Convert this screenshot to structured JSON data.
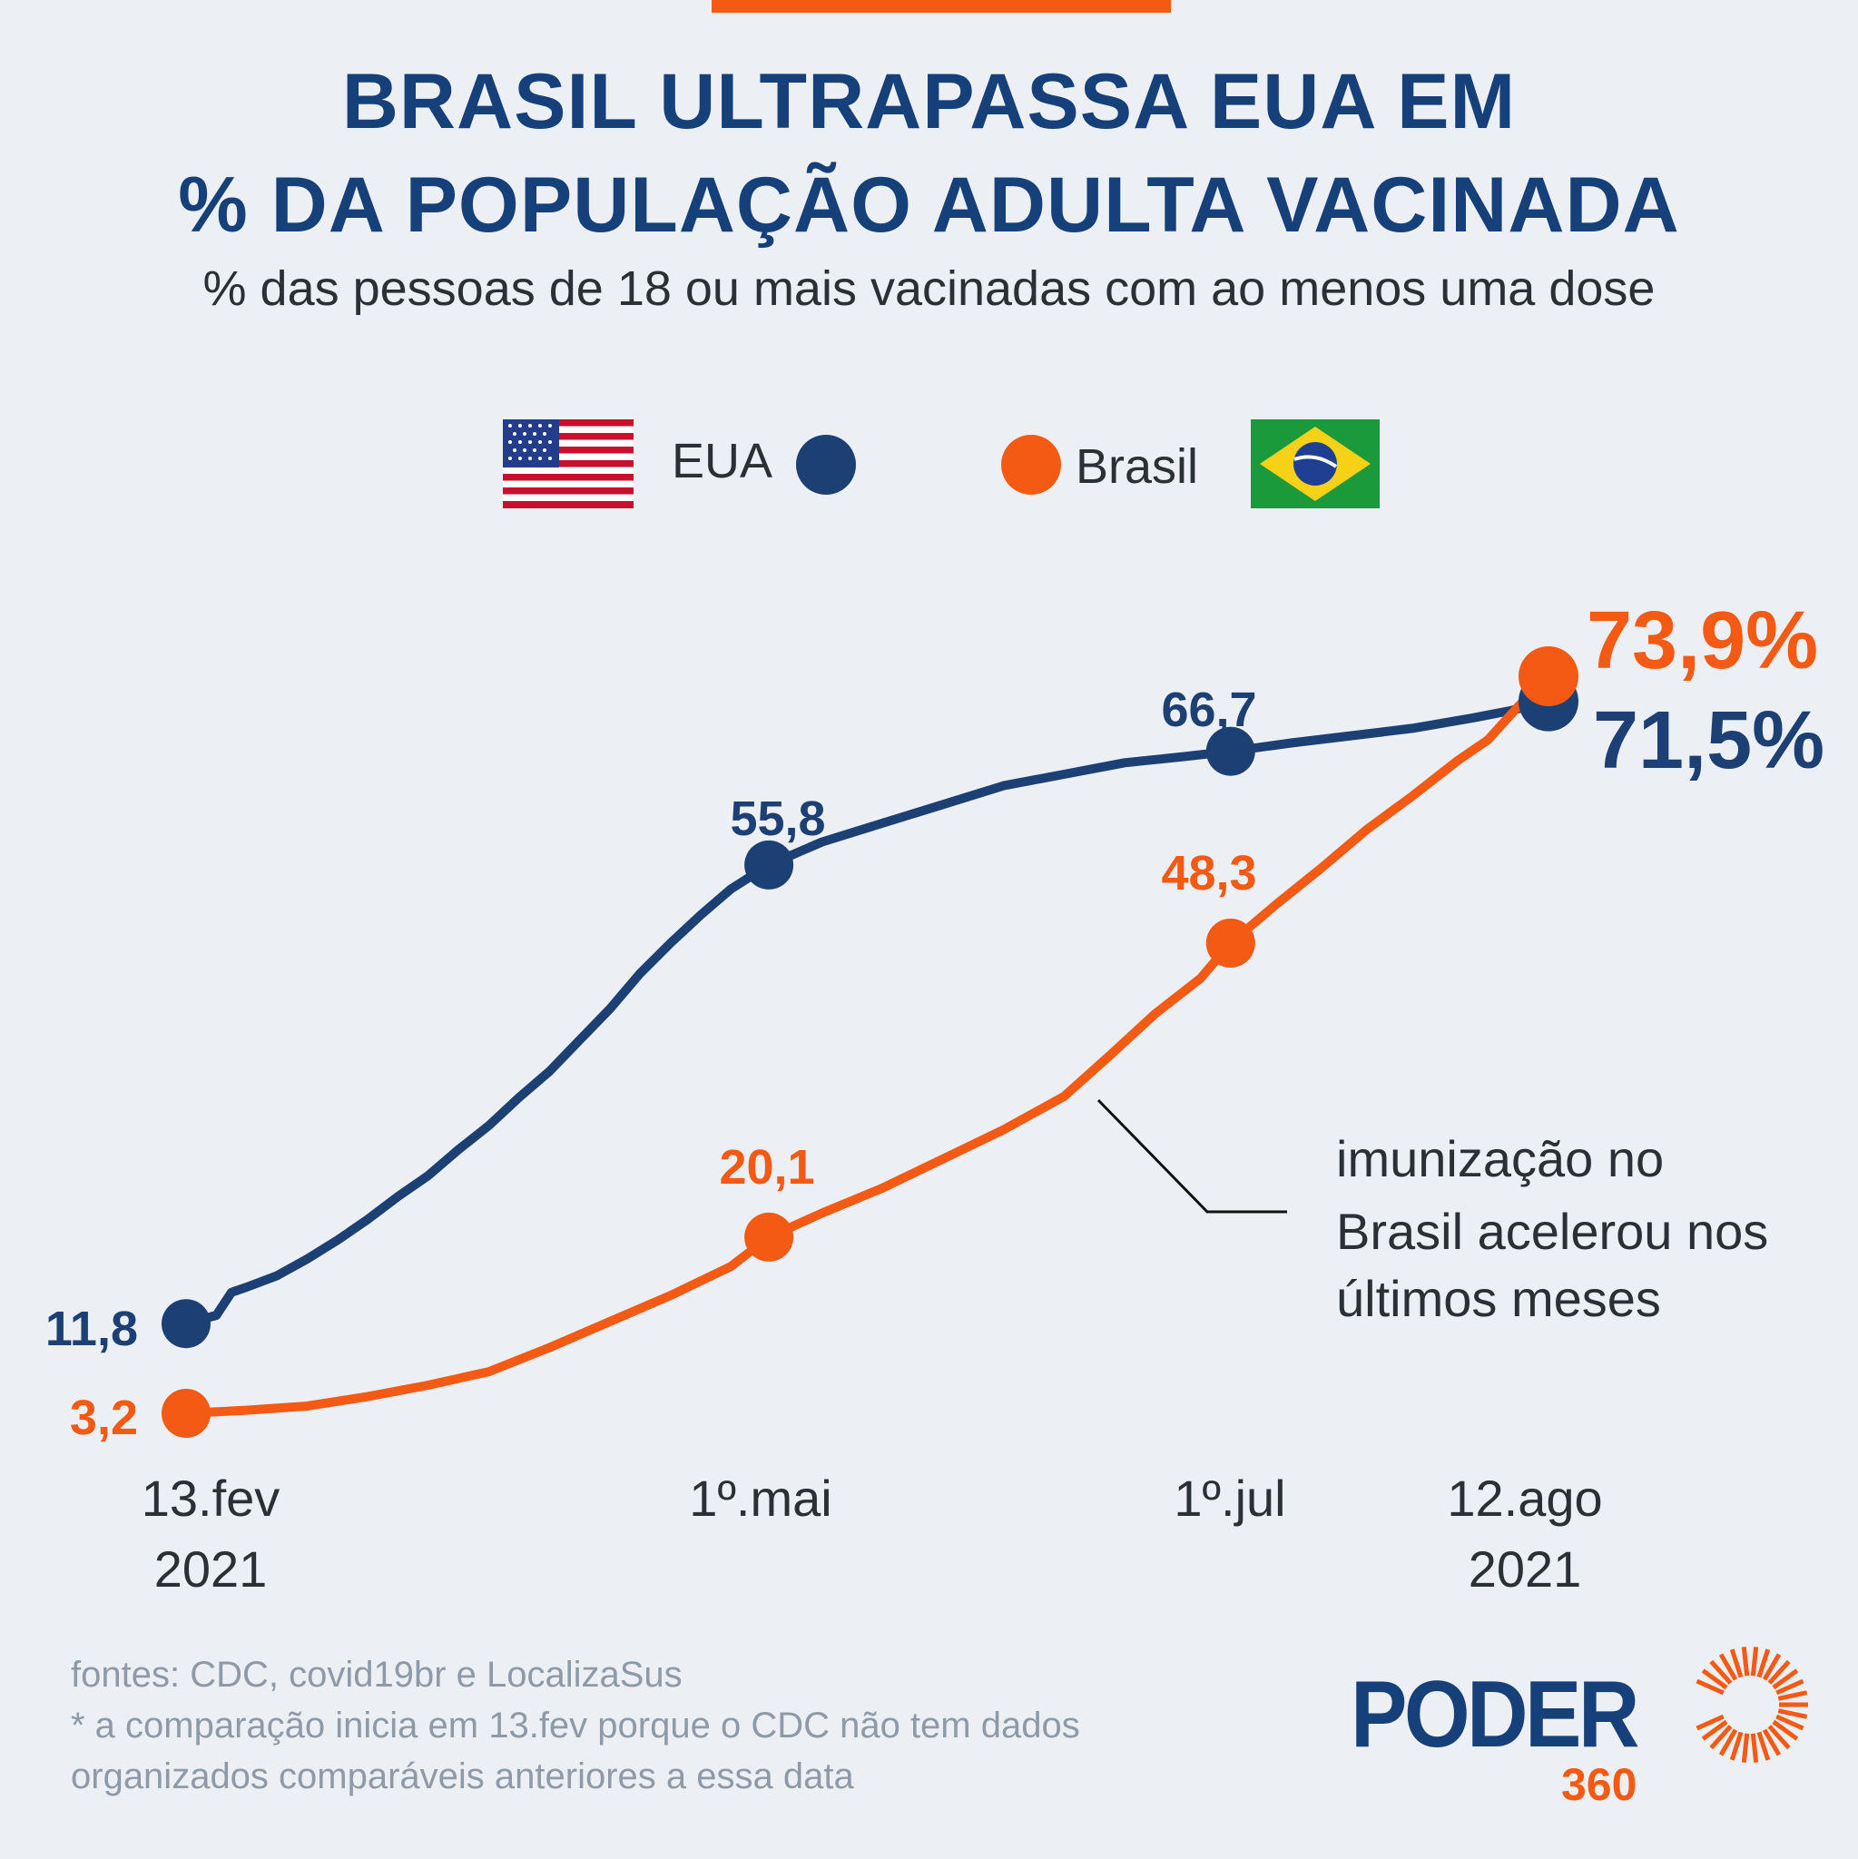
{
  "title_line1": "BRASIL ULTRAPASSA EUA EM",
  "title_line2": "% DA POPULAÇÃO ADULTA VACINADA",
  "subtitle": "% das pessoas de 18 ou mais vacinadas com ao menos uma dose",
  "legend": {
    "usa_label": "EUA",
    "brazil_label": "Brasil"
  },
  "colors": {
    "usa": "#1c3f74",
    "brazil": "#f55a14",
    "title": "#16407a",
    "background": "#eceff3"
  },
  "chart_data": {
    "type": "line",
    "title": "BRASIL ULTRAPASSA EUA EM % DA POPULAÇÃO ADULTA VACINADA",
    "subtitle": "% das pessoas de 18 ou mais vacinadas com ao menos uma dose",
    "xlabel": "",
    "ylabel": "",
    "x_ticks": [
      {
        "line1": "13.fev",
        "line2": "2021",
        "day": 0
      },
      {
        "line1": "1º.mai",
        "line2": "",
        "day": 77
      },
      {
        "line1": "1º.jul",
        "line2": "",
        "day": 138
      },
      {
        "line1": "12.ago",
        "line2": "2021",
        "day": 180
      }
    ],
    "ylim": [
      0,
      80
    ],
    "grid": false,
    "legend_position": "top-center",
    "series": [
      {
        "name": "EUA",
        "color": "#1c3f74",
        "days": [
          0,
          4,
          6,
          8,
          12,
          16,
          20,
          24,
          28,
          32,
          36,
          40,
          44,
          48,
          52,
          56,
          60,
          64,
          68,
          72,
          77,
          84,
          92,
          100,
          108,
          116,
          124,
          132,
          138,
          146,
          154,
          162,
          170,
          175,
          180
        ],
        "values": [
          11.8,
          12.6,
          14.8,
          15.3,
          16.4,
          18.0,
          19.8,
          21.8,
          24.0,
          26.0,
          28.5,
          30.8,
          33.5,
          36.0,
          39.0,
          42.0,
          45.4,
          48.3,
          51.0,
          53.5,
          55.8,
          58.0,
          59.8,
          61.6,
          63.4,
          64.5,
          65.6,
          66.2,
          66.7,
          67.5,
          68.2,
          68.9,
          69.9,
          70.6,
          71.5
        ],
        "end_label": "71,5%",
        "labeled_points": [
          {
            "day": 0,
            "value": 11.8,
            "label": "11,8"
          },
          {
            "day": 77,
            "value": 55.8,
            "label": "55,8"
          },
          {
            "day": 138,
            "value": 66.7,
            "label": "66,7"
          },
          {
            "day": 180,
            "value": 71.5,
            "label": "71,5%"
          }
        ]
      },
      {
        "name": "Brasil",
        "color": "#f55a14",
        "days": [
          0,
          8,
          16,
          24,
          32,
          40,
          48,
          56,
          64,
          72,
          77,
          84,
          92,
          100,
          108,
          116,
          122,
          128,
          134,
          138,
          144,
          150,
          156,
          162,
          168,
          172,
          176,
          180
        ],
        "values": [
          3.2,
          3.5,
          3.9,
          4.8,
          5.9,
          7.2,
          9.5,
          12.0,
          14.5,
          17.3,
          20.1,
          22.4,
          24.8,
          27.6,
          30.4,
          33.6,
          37.5,
          41.5,
          44.9,
          48.3,
          52.0,
          55.5,
          59.2,
          62.4,
          65.8,
          67.8,
          71.0,
          73.9
        ],
        "end_label": "73,9%",
        "labeled_points": [
          {
            "day": 0,
            "value": 3.2,
            "label": "3,2"
          },
          {
            "day": 77,
            "value": 20.1,
            "label": "20,1"
          },
          {
            "day": 138,
            "value": 48.3,
            "label": "48,3"
          },
          {
            "day": 180,
            "value": 73.9,
            "label": "73,9%"
          }
        ]
      }
    ],
    "annotation": {
      "lines": [
        "imunização no",
        "Brasil acelerou nos",
        "últimos meses"
      ],
      "target_day": 116,
      "target_series": "Brasil"
    }
  },
  "footnotes": [
    "fontes: CDC, covid19br e LocalizaSus",
    "* a comparação inicia em 13.fev porque o CDC não tem dados",
    "organizados comparáveis anteriores a essa data"
  ],
  "brand": {
    "name": "PODER",
    "number": "360"
  }
}
